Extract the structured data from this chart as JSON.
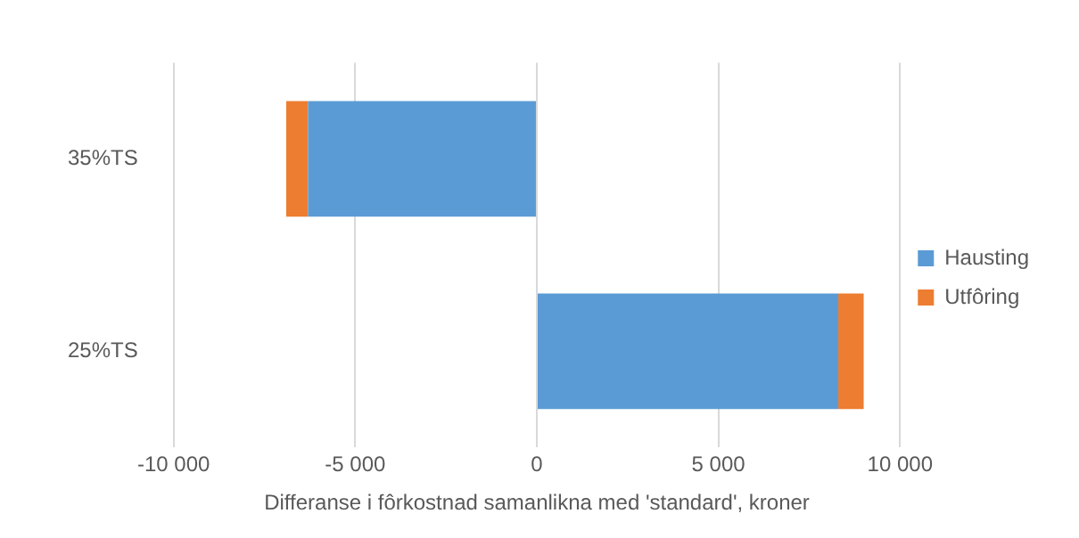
{
  "chart_data": {
    "type": "bar",
    "orientation": "horizontal",
    "stacked": true,
    "categories": [
      "35%TS",
      "25%TS"
    ],
    "series": [
      {
        "name": "Hausting",
        "color": "#5b9bd5",
        "values": [
          -6300,
          8300
        ]
      },
      {
        "name": "Utfôring",
        "color": "#ed7d31",
        "values": [
          -600,
          700
        ]
      }
    ],
    "xlabel": "Differanse i fôrkostnad samanlikna med 'standard', kroner",
    "xlim": [
      -10000,
      10000
    ],
    "xticks": [
      {
        "value": -10000,
        "label": "-10 000"
      },
      {
        "value": -5000,
        "label": "-5 000"
      },
      0,
      {
        "value": 5000,
        "label": "5 000"
      },
      {
        "value": 10000,
        "label": "10 000"
      }
    ],
    "grid": "x",
    "legend": "right"
  }
}
